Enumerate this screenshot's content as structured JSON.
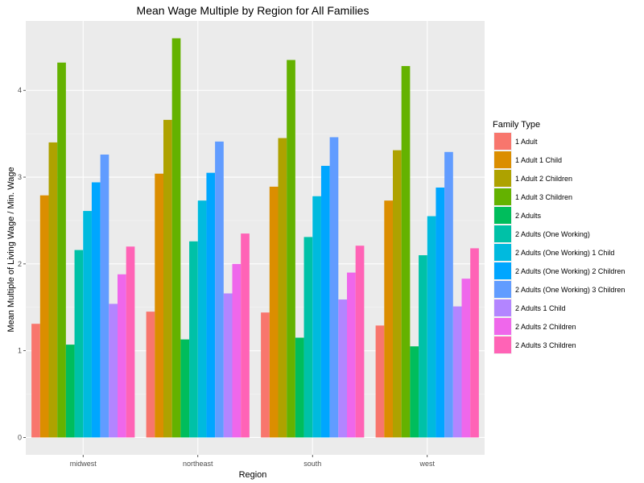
{
  "chart_data": {
    "type": "bar",
    "title": "Mean Wage Multiple by Region for All Families",
    "xlabel": "Region",
    "ylabel": "Mean Multiple of Living Wage / Min. Wage",
    "categories": [
      "midwest",
      "northeast",
      "south",
      "west"
    ],
    "ylim": [
      -0.2,
      4.8
    ],
    "yticks": [
      0,
      1,
      2,
      3,
      4
    ],
    "grid": true,
    "legend": {
      "title": "Family Type",
      "placement": "right"
    },
    "series": [
      {
        "name": "1 Adult",
        "color": "#F8766D",
        "values": [
          1.31,
          1.45,
          1.44,
          1.29
        ]
      },
      {
        "name": "1 Adult 1 Child",
        "color": "#DB8E00",
        "values": [
          2.79,
          3.04,
          2.89,
          2.73
        ]
      },
      {
        "name": "1 Adult 2 Children",
        "color": "#AEA200",
        "values": [
          3.4,
          3.66,
          3.45,
          3.31
        ]
      },
      {
        "name": "1 Adult 3 Children",
        "color": "#64B200",
        "values": [
          4.32,
          4.6,
          4.35,
          4.28
        ]
      },
      {
        "name": "2 Adults",
        "color": "#00BD5C",
        "values": [
          1.07,
          1.13,
          1.15,
          1.05
        ]
      },
      {
        "name": "2 Adults (One Working)",
        "color": "#00C1A7",
        "values": [
          2.16,
          2.26,
          2.31,
          2.1
        ]
      },
      {
        "name": "2 Adults (One Working) 1 Child",
        "color": "#00BADE",
        "values": [
          2.61,
          2.73,
          2.78,
          2.55
        ]
      },
      {
        "name": "2 Adults (One Working) 2 Children",
        "color": "#00A6FF",
        "values": [
          2.94,
          3.05,
          3.13,
          2.88
        ]
      },
      {
        "name": "2 Adults (One Working) 3 Children",
        "color": "#619CFF",
        "values": [
          3.26,
          3.41,
          3.46,
          3.29
        ]
      },
      {
        "name": "2 Adults 1 Child",
        "color": "#B385FF",
        "values": [
          1.54,
          1.66,
          1.59,
          1.51
        ]
      },
      {
        "name": "2 Adults 2 Children",
        "color": "#EF67EB",
        "values": [
          1.88,
          2.0,
          1.9,
          1.83
        ]
      },
      {
        "name": "2 Adults 3 Children",
        "color": "#FF63B6",
        "values": [
          2.2,
          2.35,
          2.21,
          2.18
        ]
      }
    ]
  }
}
